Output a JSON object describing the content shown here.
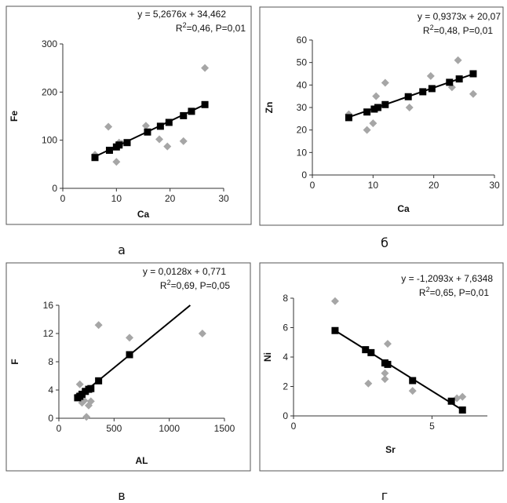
{
  "chart_data": [
    {
      "panel_label": "а",
      "type": "scatter",
      "xlabel": "Ca",
      "ylabel": "Fe",
      "xlim": [
        0,
        30
      ],
      "ylim": [
        0,
        300
      ],
      "xticks": [
        "0",
        "10",
        "20",
        "30"
      ],
      "yticks": [
        "0",
        "100",
        "200",
        "300"
      ],
      "equation": "y = 5,2676x + 34,462",
      "stats": [
        "R",
        "2",
        "=0,46,  P=0,01"
      ],
      "series": [
        {
          "marker": "diamond",
          "color": "#a6a6a6",
          "x": [
            6,
            8.5,
            10,
            10.5,
            11,
            15.5,
            18,
            19.5,
            22.5,
            26.5
          ],
          "y": [
            70,
            128,
            55,
            95,
            93,
            130,
            102,
            87,
            98,
            250
          ]
        },
        {
          "marker": "square",
          "color": "#000000",
          "x": [
            6,
            8.7,
            10,
            10.5,
            12,
            15.8,
            18.2,
            19.8,
            22.5,
            24,
            26.5
          ],
          "y": [
            64,
            79,
            86,
            90,
            95,
            117,
            129,
            137,
            151,
            160,
            174
          ]
        }
      ],
      "trendline": {
        "x": [
          6,
          26.5
        ],
        "y": [
          66,
          174
        ]
      }
    },
    {
      "panel_label": "б",
      "type": "scatter",
      "xlabel": "Ca",
      "ylabel": "Zn",
      "xlim": [
        0,
        30
      ],
      "ylim": [
        0,
        60
      ],
      "xticks": [
        "0",
        "10",
        "20",
        "30"
      ],
      "yticks": [
        "0",
        "10",
        "20",
        "30",
        "40",
        "50",
        "60"
      ],
      "equation": "y = 0,9373x + 20,07",
      "stats": [
        "R",
        "2",
        "=0,48,  P=0,01"
      ],
      "series": [
        {
          "marker": "diamond",
          "color": "#a6a6a6",
          "x": [
            6,
            9,
            10,
            10.5,
            12,
            16,
            19.5,
            23,
            24,
            26.5
          ],
          "y": [
            27,
            20,
            23,
            35,
            41,
            30,
            44,
            39,
            51,
            36
          ]
        },
        {
          "marker": "square",
          "color": "#000000",
          "x": [
            6,
            9,
            10.2,
            10.8,
            12,
            15.8,
            18.2,
            19.7,
            22.6,
            24.2,
            26.5
          ],
          "y": [
            25.5,
            28,
            29.3,
            30,
            31.3,
            34.8,
            37,
            38.4,
            41.2,
            42.7,
            45
          ]
        }
      ],
      "trendline": {
        "x": [
          6,
          26.5
        ],
        "y": [
          25.7,
          44.9
        ]
      }
    },
    {
      "panel_label": "в",
      "type": "scatter",
      "xlabel": "AL",
      "ylabel": "F",
      "xlim": [
        0,
        1500
      ],
      "ylim": [
        0,
        16
      ],
      "xticks": [
        "0",
        "500",
        "1000",
        "1500"
      ],
      "yticks": [
        "0",
        "4",
        "8",
        "12",
        "16"
      ],
      "equation": "y = 0,0128x + 0,771",
      "stats": [
        "R",
        "2",
        "=0,69,  P=0,05"
      ],
      "series": [
        {
          "marker": "diamond",
          "color": "#a6a6a6",
          "x": [
            170,
            190,
            210,
            230,
            250,
            270,
            290,
            360,
            640,
            1300
          ],
          "y": [
            3.2,
            4.8,
            2.2,
            2.5,
            0.2,
            1.8,
            2.4,
            13.2,
            11.4,
            12
          ]
        },
        {
          "marker": "square",
          "color": "#000000",
          "x": [
            170,
            190,
            210,
            240,
            270,
            290,
            360,
            640
          ],
          "y": [
            2.9,
            3.1,
            3.4,
            3.8,
            4.1,
            4.2,
            5.3,
            9
          ]
        }
      ],
      "trendline": {
        "x": [
          160,
          1190
        ],
        "y": [
          2.8,
          16
        ]
      }
    },
    {
      "panel_label": "г",
      "type": "scatter",
      "xlabel": "Sr",
      "ylabel": "Ni",
      "xlim": [
        0,
        7
      ],
      "ylim": [
        0,
        8
      ],
      "xticks": [
        "0",
        "5"
      ],
      "xtick_values": [
        0,
        5
      ],
      "yticks": [
        "0",
        "2",
        "4",
        "6",
        "8"
      ],
      "equation": "y = -1,2093x + 7,6348",
      "stats": [
        "R",
        "2",
        "=0,65,  P=0,01"
      ],
      "series": [
        {
          "marker": "diamond",
          "color": "#a6a6a6",
          "x": [
            1.5,
            2.7,
            3.3,
            3.4,
            3.3,
            4.3,
            5.9,
            6.1
          ],
          "y": [
            7.8,
            2.2,
            2.9,
            4.9,
            2.5,
            1.7,
            1.2,
            1.3
          ]
        },
        {
          "marker": "square",
          "color": "#000000",
          "x": [
            1.5,
            2.6,
            2.8,
            3.3,
            3.4,
            4.3,
            5.7,
            6.1
          ],
          "y": [
            5.8,
            4.5,
            4.3,
            3.6,
            3.5,
            2.4,
            1,
            0.4
          ]
        }
      ],
      "trendline": {
        "x": [
          1.5,
          6.1
        ],
        "y": [
          5.8,
          0.4
        ]
      }
    }
  ]
}
